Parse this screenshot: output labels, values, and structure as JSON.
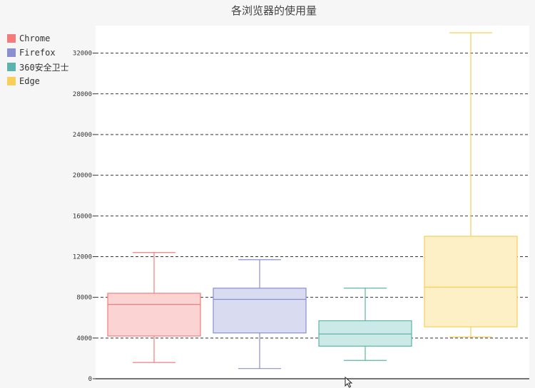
{
  "chart_data": {
    "type": "boxplot",
    "title": "各浏览器的使用量",
    "xlabel": "",
    "ylabel": "",
    "ylim": [
      0,
      35000
    ],
    "yticks": [
      0,
      4000,
      8000,
      12000,
      16000,
      20000,
      24000,
      28000,
      32000
    ],
    "grid": "horizontal-dashed",
    "legend_position": "top-left",
    "series": [
      {
        "name": "Chrome",
        "color": "#f47c7c",
        "fill": "#fbd3d3",
        "min": 1600,
        "q1": 4200,
        "median": 7300,
        "q3": 8400,
        "max": 12400
      },
      {
        "name": "Firefox",
        "color": "#8a8fcf",
        "fill": "#d9dbf1",
        "min": 1000,
        "q1": 4500,
        "median": 7800,
        "q3": 8900,
        "max": 11700
      },
      {
        "name": "360安全卫士",
        "color": "#5cb4ac",
        "fill": "#cbe9e6",
        "min": 1800,
        "q1": 3200,
        "median": 4400,
        "q3": 5700,
        "max": 8900
      },
      {
        "name": "Edge",
        "color": "#f7cf5a",
        "fill": "#fdf0c6",
        "min": 4100,
        "q1": 5100,
        "median": 9000,
        "q3": 14000,
        "max": 34000
      }
    ]
  }
}
